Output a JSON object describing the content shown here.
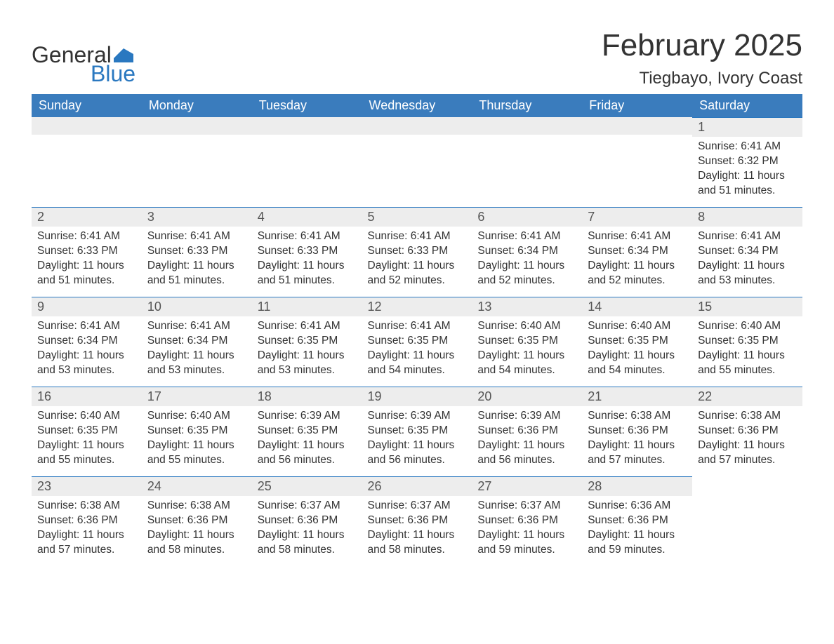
{
  "logo": {
    "text_general": "General",
    "text_blue": "Blue",
    "flag_color": "#2a78c0"
  },
  "title": {
    "month": "February 2025",
    "location": "Tiegbayo, Ivory Coast"
  },
  "colors": {
    "header_bg": "#3a7cbd",
    "header_text": "#ffffff",
    "daynum_bg": "#ededed",
    "daynum_border": "#2a78c0",
    "body_text": "#333333",
    "logo_blue": "#2a78c0",
    "background": "#ffffff"
  },
  "weekdays": [
    "Sunday",
    "Monday",
    "Tuesday",
    "Wednesday",
    "Thursday",
    "Friday",
    "Saturday"
  ],
  "weeks": [
    [
      null,
      null,
      null,
      null,
      null,
      null,
      {
        "n": "1",
        "sunrise": "Sunrise: 6:41 AM",
        "sunset": "Sunset: 6:32 PM",
        "daylight": "Daylight: 11 hours and 51 minutes."
      }
    ],
    [
      {
        "n": "2",
        "sunrise": "Sunrise: 6:41 AM",
        "sunset": "Sunset: 6:33 PM",
        "daylight": "Daylight: 11 hours and 51 minutes."
      },
      {
        "n": "3",
        "sunrise": "Sunrise: 6:41 AM",
        "sunset": "Sunset: 6:33 PM",
        "daylight": "Daylight: 11 hours and 51 minutes."
      },
      {
        "n": "4",
        "sunrise": "Sunrise: 6:41 AM",
        "sunset": "Sunset: 6:33 PM",
        "daylight": "Daylight: 11 hours and 51 minutes."
      },
      {
        "n": "5",
        "sunrise": "Sunrise: 6:41 AM",
        "sunset": "Sunset: 6:33 PM",
        "daylight": "Daylight: 11 hours and 52 minutes."
      },
      {
        "n": "6",
        "sunrise": "Sunrise: 6:41 AM",
        "sunset": "Sunset: 6:34 PM",
        "daylight": "Daylight: 11 hours and 52 minutes."
      },
      {
        "n": "7",
        "sunrise": "Sunrise: 6:41 AM",
        "sunset": "Sunset: 6:34 PM",
        "daylight": "Daylight: 11 hours and 52 minutes."
      },
      {
        "n": "8",
        "sunrise": "Sunrise: 6:41 AM",
        "sunset": "Sunset: 6:34 PM",
        "daylight": "Daylight: 11 hours and 53 minutes."
      }
    ],
    [
      {
        "n": "9",
        "sunrise": "Sunrise: 6:41 AM",
        "sunset": "Sunset: 6:34 PM",
        "daylight": "Daylight: 11 hours and 53 minutes."
      },
      {
        "n": "10",
        "sunrise": "Sunrise: 6:41 AM",
        "sunset": "Sunset: 6:34 PM",
        "daylight": "Daylight: 11 hours and 53 minutes."
      },
      {
        "n": "11",
        "sunrise": "Sunrise: 6:41 AM",
        "sunset": "Sunset: 6:35 PM",
        "daylight": "Daylight: 11 hours and 53 minutes."
      },
      {
        "n": "12",
        "sunrise": "Sunrise: 6:41 AM",
        "sunset": "Sunset: 6:35 PM",
        "daylight": "Daylight: 11 hours and 54 minutes."
      },
      {
        "n": "13",
        "sunrise": "Sunrise: 6:40 AM",
        "sunset": "Sunset: 6:35 PM",
        "daylight": "Daylight: 11 hours and 54 minutes."
      },
      {
        "n": "14",
        "sunrise": "Sunrise: 6:40 AM",
        "sunset": "Sunset: 6:35 PM",
        "daylight": "Daylight: 11 hours and 54 minutes."
      },
      {
        "n": "15",
        "sunrise": "Sunrise: 6:40 AM",
        "sunset": "Sunset: 6:35 PM",
        "daylight": "Daylight: 11 hours and 55 minutes."
      }
    ],
    [
      {
        "n": "16",
        "sunrise": "Sunrise: 6:40 AM",
        "sunset": "Sunset: 6:35 PM",
        "daylight": "Daylight: 11 hours and 55 minutes."
      },
      {
        "n": "17",
        "sunrise": "Sunrise: 6:40 AM",
        "sunset": "Sunset: 6:35 PM",
        "daylight": "Daylight: 11 hours and 55 minutes."
      },
      {
        "n": "18",
        "sunrise": "Sunrise: 6:39 AM",
        "sunset": "Sunset: 6:35 PM",
        "daylight": "Daylight: 11 hours and 56 minutes."
      },
      {
        "n": "19",
        "sunrise": "Sunrise: 6:39 AM",
        "sunset": "Sunset: 6:35 PM",
        "daylight": "Daylight: 11 hours and 56 minutes."
      },
      {
        "n": "20",
        "sunrise": "Sunrise: 6:39 AM",
        "sunset": "Sunset: 6:36 PM",
        "daylight": "Daylight: 11 hours and 56 minutes."
      },
      {
        "n": "21",
        "sunrise": "Sunrise: 6:38 AM",
        "sunset": "Sunset: 6:36 PM",
        "daylight": "Daylight: 11 hours and 57 minutes."
      },
      {
        "n": "22",
        "sunrise": "Sunrise: 6:38 AM",
        "sunset": "Sunset: 6:36 PM",
        "daylight": "Daylight: 11 hours and 57 minutes."
      }
    ],
    [
      {
        "n": "23",
        "sunrise": "Sunrise: 6:38 AM",
        "sunset": "Sunset: 6:36 PM",
        "daylight": "Daylight: 11 hours and 57 minutes."
      },
      {
        "n": "24",
        "sunrise": "Sunrise: 6:38 AM",
        "sunset": "Sunset: 6:36 PM",
        "daylight": "Daylight: 11 hours and 58 minutes."
      },
      {
        "n": "25",
        "sunrise": "Sunrise: 6:37 AM",
        "sunset": "Sunset: 6:36 PM",
        "daylight": "Daylight: 11 hours and 58 minutes."
      },
      {
        "n": "26",
        "sunrise": "Sunrise: 6:37 AM",
        "sunset": "Sunset: 6:36 PM",
        "daylight": "Daylight: 11 hours and 58 minutes."
      },
      {
        "n": "27",
        "sunrise": "Sunrise: 6:37 AM",
        "sunset": "Sunset: 6:36 PM",
        "daylight": "Daylight: 11 hours and 59 minutes."
      },
      {
        "n": "28",
        "sunrise": "Sunrise: 6:36 AM",
        "sunset": "Sunset: 6:36 PM",
        "daylight": "Daylight: 11 hours and 59 minutes."
      },
      null
    ]
  ]
}
